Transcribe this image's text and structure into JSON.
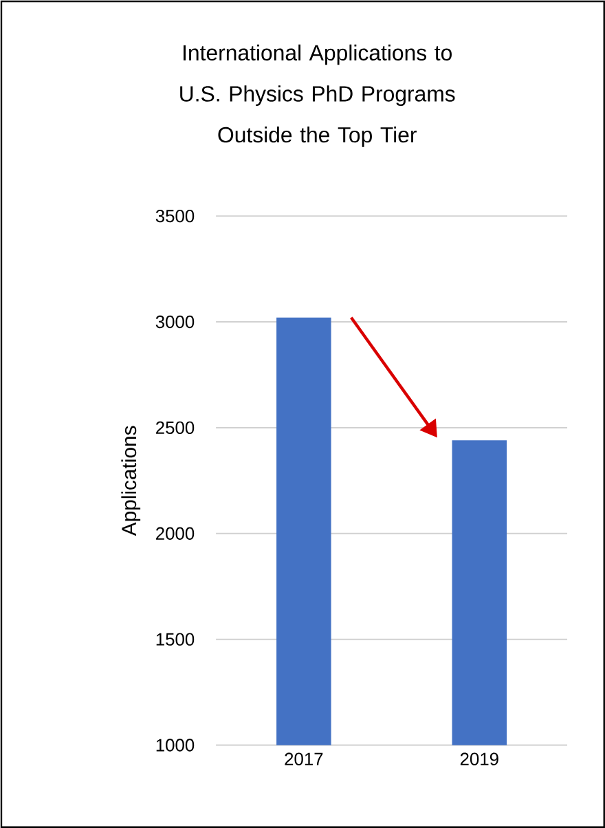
{
  "chart_data": {
    "type": "bar",
    "title": "International Applications to U.S. Physics PhD Programs Outside the Top Tier",
    "ylabel": "Applications",
    "categories": [
      "2017",
      "2019"
    ],
    "values": [
      3020,
      2440
    ],
    "color": "#4472c4",
    "ylim": [
      1000,
      3500
    ],
    "yticks": [
      1000,
      1500,
      2000,
      2500,
      3000,
      3500
    ],
    "grid": "y"
  }
}
